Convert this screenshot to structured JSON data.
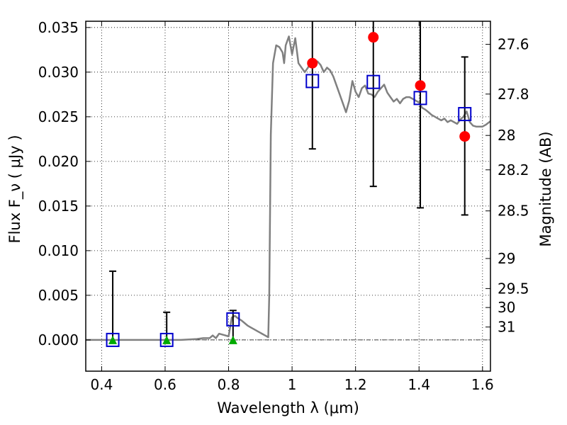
{
  "chart_data": {
    "type": "scatter",
    "xlabel": "Wavelength  λ (μm)",
    "ylabel": "Flux  F_ν  ( μJy )",
    "y2label": "Magnitude (AB)",
    "xlim": [
      0.35,
      1.625
    ],
    "ylim": [
      -0.0035,
      0.0357
    ],
    "grid": true,
    "x_ticks": [
      0.4,
      0.6,
      0.8,
      1.0,
      1.2,
      1.4,
      1.6
    ],
    "x_tick_labels": [
      "0.4",
      "0.6",
      "0.8",
      "1",
      "1.2",
      "1.4",
      "1.6"
    ],
    "y_ticks": [
      0.0,
      0.005,
      0.01,
      0.015,
      0.02,
      0.025,
      0.03,
      0.035
    ],
    "y_tick_labels": [
      "0.000",
      "0.005",
      "0.010",
      "0.015",
      "0.020",
      "0.025",
      "0.030",
      "0.035"
    ],
    "y2_ticks": [
      27.6,
      27.8,
      28,
      28.2,
      28.5,
      29,
      29.5,
      30,
      31
    ],
    "y2_tick_labels": [
      "27.6",
      "27.8",
      "28",
      "28.2",
      "28.5",
      "29",
      "29.5",
      "30",
      "31"
    ],
    "colors": {
      "model_line": "#808080",
      "observed_points": "#ff0000",
      "upper_limit_markers": "#00aa00",
      "model_fluxes": "#0000cc",
      "error_bars": "#000000",
      "zero_line": "#000000"
    },
    "series": [
      {
        "kind": "line",
        "x": [
          0.35,
          0.5,
          0.65,
          0.7,
          0.72,
          0.74,
          0.75,
          0.76,
          0.77,
          0.78,
          0.79,
          0.8,
          0.81,
          0.82,
          0.83,
          0.84,
          0.85,
          0.86,
          0.87,
          0.88,
          0.89,
          0.9,
          0.905,
          0.915,
          0.925,
          0.928,
          0.933,
          0.94,
          0.95,
          0.96,
          0.97,
          0.975,
          0.98,
          0.99,
          1.0,
          1.01,
          1.02,
          1.03,
          1.04,
          1.05,
          1.06,
          1.07,
          1.08,
          1.09,
          1.1,
          1.11,
          1.12,
          1.13,
          1.14,
          1.15,
          1.16,
          1.17,
          1.18,
          1.19,
          1.2,
          1.21,
          1.22,
          1.23,
          1.24,
          1.25,
          1.26,
          1.27,
          1.28,
          1.29,
          1.3,
          1.31,
          1.32,
          1.33,
          1.34,
          1.35,
          1.36,
          1.37,
          1.38,
          1.39,
          1.4,
          1.41,
          1.42,
          1.43,
          1.44,
          1.45,
          1.46,
          1.47,
          1.48,
          1.49,
          1.5,
          1.51,
          1.52,
          1.53,
          1.54,
          1.55,
          1.56,
          1.57,
          1.58,
          1.59,
          1.6,
          1.61,
          1.625
        ],
        "y": [
          0.0,
          0.0,
          0.0,
          0.0001,
          0.0002,
          0.0002,
          0.0005,
          0.0002,
          0.0007,
          0.0006,
          0.0005,
          0.0004,
          0.0025,
          0.0027,
          0.0024,
          0.0022,
          0.0019,
          0.0016,
          0.0014,
          0.0012,
          0.001,
          0.0008,
          0.0007,
          0.0005,
          0.0003,
          0.005,
          0.023,
          0.031,
          0.033,
          0.0328,
          0.0322,
          0.031,
          0.033,
          0.034,
          0.032,
          0.0338,
          0.031,
          0.0305,
          0.03,
          0.0305,
          0.0312,
          0.031,
          0.0312,
          0.0308,
          0.03,
          0.0305,
          0.0302,
          0.0295,
          0.0285,
          0.0275,
          0.0265,
          0.0255,
          0.0268,
          0.029,
          0.0278,
          0.0272,
          0.0282,
          0.0285,
          0.0276,
          0.0275,
          0.0272,
          0.0278,
          0.0282,
          0.0286,
          0.0277,
          0.0272,
          0.0267,
          0.027,
          0.0265,
          0.027,
          0.0272,
          0.0272,
          0.027,
          0.0268,
          0.0266,
          0.026,
          0.0258,
          0.0255,
          0.0252,
          0.025,
          0.0248,
          0.0246,
          0.0248,
          0.0244,
          0.0246,
          0.0244,
          0.0242,
          0.0247,
          0.025,
          0.0256,
          0.0244,
          0.024,
          0.0239,
          0.0239,
          0.0239,
          0.0241,
          0.0245
        ]
      },
      {
        "kind": "errorbar",
        "x": [
          0.435,
          0.605,
          0.814,
          1.064,
          1.256,
          1.404,
          1.544
        ],
        "lower": [
          0.0,
          0.0,
          0.0,
          0.0214,
          0.0172,
          0.0148,
          0.014
        ],
        "upper": [
          0.0077,
          0.0031,
          0.0033,
          0.0357,
          0.0357,
          0.0357,
          0.0317
        ]
      },
      {
        "kind": "scatter",
        "marker": "circle",
        "x": [
          1.064,
          1.256,
          1.404,
          1.544
        ],
        "y": [
          0.031,
          0.0339,
          0.0285,
          0.0228
        ]
      },
      {
        "kind": "scatter",
        "marker": "triangle",
        "x": [
          0.435,
          0.605,
          0.814
        ],
        "y": [
          0.0,
          0.0,
          0.0
        ]
      },
      {
        "kind": "scatter",
        "marker": "square",
        "x": [
          0.435,
          0.605,
          0.814,
          1.064,
          1.256,
          1.404,
          1.544
        ],
        "y": [
          0.0,
          0.0,
          0.0023,
          0.029,
          0.0289,
          0.0271,
          0.0253
        ]
      }
    ]
  }
}
